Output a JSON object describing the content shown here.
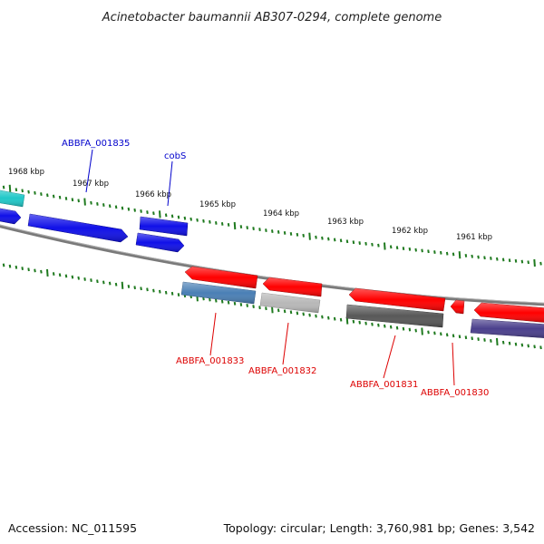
{
  "title": "Acinetobacter baumannii AB307-0294, complete genome",
  "footer": {
    "accession": "Accession: NC_011595",
    "summary": "Topology: circular; Length: 3,760,981 bp; Genes: 3,542"
  },
  "colors": {
    "backbone": "#808080",
    "tick": "#1f7a1f",
    "blue_gene": "#1010e8",
    "red_gene": "#ff0000",
    "cyan_gene": "#20c8c8",
    "steel_gene": "#4a7fb5",
    "silver_gene": "#b8b8b8",
    "gray_gene": "#585858",
    "purple_gene": "#4a3f8c",
    "blue_label": "#0000cc",
    "red_label": "#dd0000"
  },
  "kbp_labels": [
    "1968 kbp",
    "1967 kbp",
    "1966 kbp",
    "1965 kbp",
    "1964 kbp",
    "1963 kbp",
    "1962 kbp",
    "1961 kbp"
  ],
  "gene_labels": [
    {
      "text": "ABBFA_001835",
      "strand": "forward"
    },
    {
      "text": "cobS",
      "strand": "forward"
    },
    {
      "text": "ABBFA_001833",
      "strand": "reverse"
    },
    {
      "text": "ABBFA_001832",
      "strand": "reverse"
    },
    {
      "text": "ABBFA_001831",
      "strand": "reverse"
    },
    {
      "text": "ABBFA_001830",
      "strand": "reverse"
    }
  ]
}
